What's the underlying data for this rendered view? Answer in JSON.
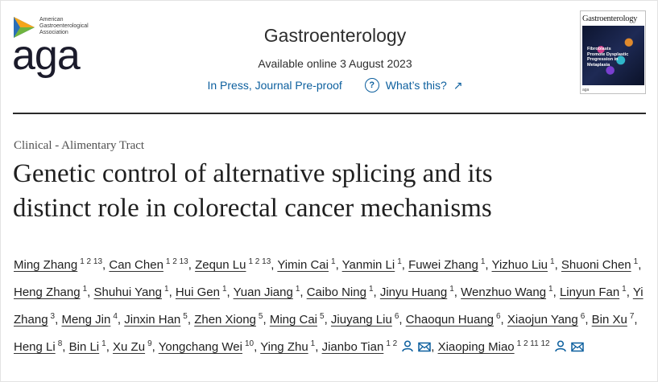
{
  "publisher": {
    "logo_small_text": [
      "American",
      "Gastroenterological",
      "Association"
    ],
    "logo_word": "aga"
  },
  "journal": {
    "name": "Gastroenterology",
    "available": "Available online 3 August 2023",
    "status": "In Press, Journal Pre-proof",
    "whats_this": "What’s this?"
  },
  "cover": {
    "title": "Gastroenterology",
    "caption": "Fibroblasts Promote Dysplastic Progression in Metaplasia",
    "footer": "aga"
  },
  "article": {
    "category": "Clinical - Alimentary Tract",
    "title_line1": "Genetic control of alternative splicing and its",
    "title_line2": "distinct role in colorectal cancer mechanisms"
  },
  "authors": [
    {
      "name": "Ming Zhang",
      "aff": "1 2 13"
    },
    {
      "name": "Can Chen",
      "aff": "1 2 13"
    },
    {
      "name": "Zequn Lu",
      "aff": "1 2 13"
    },
    {
      "name": "Yimin Cai",
      "aff": "1"
    },
    {
      "name": "Yanmin Li",
      "aff": "1"
    },
    {
      "name": "Fuwei Zhang",
      "aff": "1"
    },
    {
      "name": "Yizhuo Liu",
      "aff": "1"
    },
    {
      "name": "Shuoni Chen",
      "aff": "1"
    },
    {
      "name": "Heng Zhang",
      "aff": "1"
    },
    {
      "name": "Shuhui Yang",
      "aff": "1"
    },
    {
      "name": "Hui Gen",
      "aff": "1"
    },
    {
      "name": "Yuan Jiang",
      "aff": "1"
    },
    {
      "name": "Caibo Ning",
      "aff": "1"
    },
    {
      "name": "Jinyu Huang",
      "aff": "1"
    },
    {
      "name": "Wenzhuo Wang",
      "aff": "1"
    },
    {
      "name": "Linyun Fan",
      "aff": "1"
    },
    {
      "name": "Yi Zhang",
      "aff": "3"
    },
    {
      "name": "Meng Jin",
      "aff": "4"
    },
    {
      "name": "Jinxin Han",
      "aff": "5"
    },
    {
      "name": "Zhen Xiong",
      "aff": "5"
    },
    {
      "name": "Ming Cai",
      "aff": "5"
    },
    {
      "name": "Jiuyang Liu",
      "aff": "6"
    },
    {
      "name": "Chaoqun Huang",
      "aff": "6"
    },
    {
      "name": "Xiaojun Yang",
      "aff": "6"
    },
    {
      "name": "Bin Xu",
      "aff": "7"
    },
    {
      "name": "Heng Li",
      "aff": "8"
    },
    {
      "name": "Bin Li",
      "aff": "1"
    },
    {
      "name": "Xu Zu",
      "aff": "9"
    },
    {
      "name": "Yongchang Wei",
      "aff": "10"
    },
    {
      "name": "Ying Zhu",
      "aff": "1"
    },
    {
      "name": "Jianbo Tian",
      "aff": "1 2",
      "icons": [
        "person-icon",
        "envelope-icon"
      ]
    },
    {
      "name": "Xiaoping Miao",
      "aff": "1 2 11 12",
      "icons": [
        "person-icon",
        "envelope-icon"
      ]
    }
  ],
  "colors": {
    "link": "#0c5f9e",
    "text": "#1f1f1f",
    "logo_triangle": [
      "#f4a51c",
      "#2a6fb8",
      "#6fb43f"
    ]
  }
}
